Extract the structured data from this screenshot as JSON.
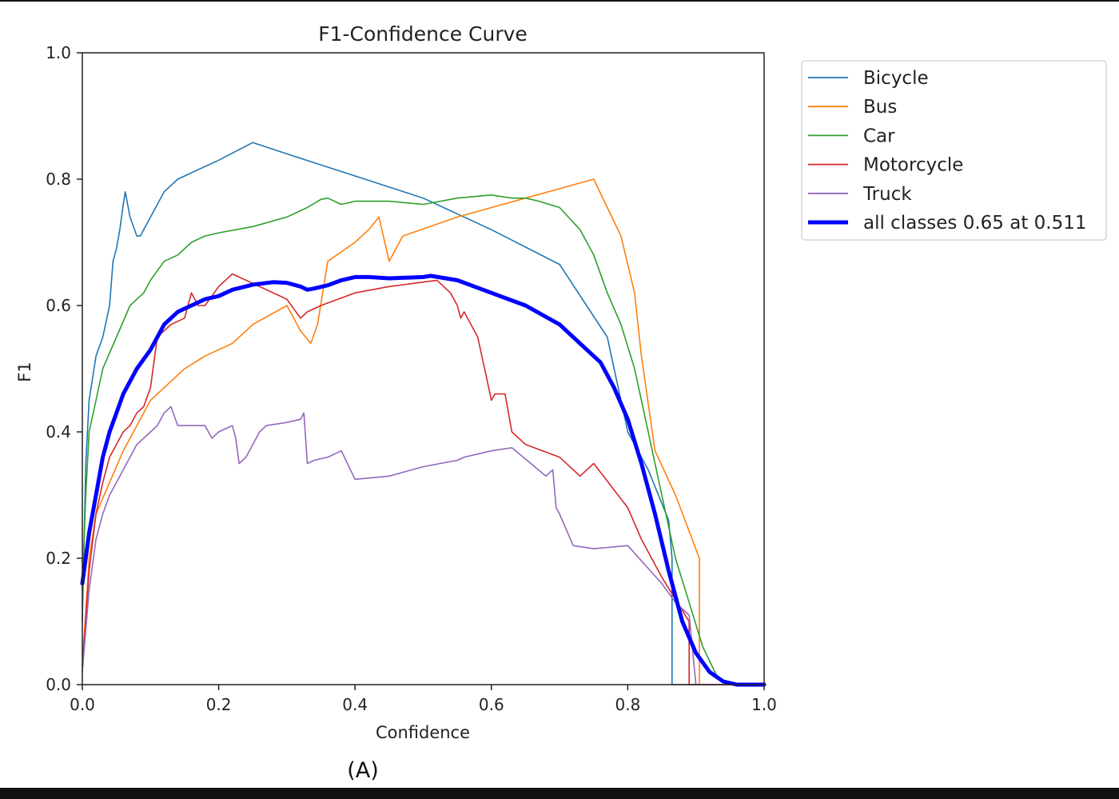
{
  "caption": "(A)",
  "chart_data": {
    "type": "line",
    "title": "F1-Confidence Curve",
    "xlabel": "Confidence",
    "ylabel": "F1",
    "xlim": [
      0.0,
      1.0
    ],
    "ylim": [
      0.0,
      1.0
    ],
    "xticks": [
      "0.0",
      "0.2",
      "0.4",
      "0.6",
      "0.8",
      "1.0"
    ],
    "yticks": [
      "0.0",
      "0.2",
      "0.4",
      "0.6",
      "0.8",
      "1.0"
    ],
    "grid": false,
    "legend_position": "outside-right-top",
    "series": [
      {
        "name": "Bicycle",
        "color": "#1f77b4",
        "width": 1.6,
        "x": [
          0,
          0.005,
          0.01,
          0.02,
          0.03,
          0.04,
          0.045,
          0.05,
          0.055,
          0.06,
          0.063,
          0.07,
          0.08,
          0.085,
          0.1,
          0.12,
          0.14,
          0.2,
          0.25,
          0.3,
          0.4,
          0.5,
          0.6,
          0.7,
          0.77,
          0.8,
          0.83,
          0.86,
          0.865,
          0.865,
          1.0
        ],
        "y": [
          0.1,
          0.35,
          0.45,
          0.52,
          0.55,
          0.6,
          0.67,
          0.69,
          0.72,
          0.76,
          0.78,
          0.74,
          0.71,
          0.71,
          0.74,
          0.78,
          0.8,
          0.83,
          0.858,
          0.84,
          0.805,
          0.77,
          0.72,
          0.665,
          0.55,
          0.4,
          0.34,
          0.26,
          0.2,
          0.0,
          0.0
        ]
      },
      {
        "name": "Bus",
        "color": "#ff7f0e",
        "width": 1.6,
        "x": [
          0,
          0.01,
          0.02,
          0.04,
          0.06,
          0.08,
          0.1,
          0.12,
          0.15,
          0.18,
          0.22,
          0.23,
          0.25,
          0.3,
          0.32,
          0.335,
          0.345,
          0.36,
          0.4,
          0.42,
          0.435,
          0.45,
          0.47,
          0.55,
          0.6,
          0.65,
          0.7,
          0.75,
          0.79,
          0.81,
          0.82,
          0.84,
          0.87,
          0.905,
          0.905,
          1.0
        ],
        "y": [
          0.03,
          0.2,
          0.27,
          0.32,
          0.37,
          0.41,
          0.45,
          0.47,
          0.5,
          0.52,
          0.54,
          0.55,
          0.57,
          0.6,
          0.56,
          0.54,
          0.57,
          0.67,
          0.7,
          0.72,
          0.74,
          0.67,
          0.71,
          0.74,
          0.755,
          0.77,
          0.785,
          0.8,
          0.71,
          0.62,
          0.52,
          0.37,
          0.3,
          0.2,
          0.0,
          0.0
        ]
      },
      {
        "name": "Car",
        "color": "#2ca02c",
        "width": 1.6,
        "x": [
          0,
          0.005,
          0.01,
          0.02,
          0.03,
          0.05,
          0.07,
          0.09,
          0.1,
          0.12,
          0.14,
          0.16,
          0.18,
          0.2,
          0.25,
          0.3,
          0.33,
          0.35,
          0.36,
          0.38,
          0.4,
          0.45,
          0.5,
          0.55,
          0.6,
          0.63,
          0.65,
          0.67,
          0.7,
          0.73,
          0.75,
          0.77,
          0.79,
          0.81,
          0.83,
          0.85,
          0.87,
          0.89,
          0.91,
          0.93,
          0.95,
          1.0
        ],
        "y": [
          0.15,
          0.3,
          0.4,
          0.45,
          0.5,
          0.55,
          0.6,
          0.62,
          0.64,
          0.67,
          0.68,
          0.7,
          0.71,
          0.715,
          0.725,
          0.74,
          0.755,
          0.768,
          0.77,
          0.76,
          0.765,
          0.765,
          0.76,
          0.77,
          0.775,
          0.77,
          0.77,
          0.765,
          0.755,
          0.72,
          0.68,
          0.62,
          0.57,
          0.5,
          0.4,
          0.3,
          0.2,
          0.13,
          0.06,
          0.015,
          0.0,
          0.0
        ]
      },
      {
        "name": "Motorcycle",
        "color": "#d62728",
        "width": 1.6,
        "x": [
          0,
          0.01,
          0.02,
          0.03,
          0.04,
          0.05,
          0.06,
          0.07,
          0.08,
          0.09,
          0.1,
          0.11,
          0.13,
          0.15,
          0.16,
          0.17,
          0.18,
          0.2,
          0.22,
          0.25,
          0.3,
          0.32,
          0.33,
          0.35,
          0.4,
          0.45,
          0.52,
          0.54,
          0.55,
          0.555,
          0.56,
          0.58,
          0.59,
          0.6,
          0.605,
          0.62,
          0.63,
          0.65,
          0.7,
          0.73,
          0.75,
          0.8,
          0.82,
          0.85,
          0.89,
          0.89,
          1.0
        ],
        "y": [
          0.03,
          0.18,
          0.27,
          0.32,
          0.36,
          0.38,
          0.4,
          0.41,
          0.43,
          0.44,
          0.47,
          0.55,
          0.57,
          0.58,
          0.62,
          0.6,
          0.6,
          0.63,
          0.65,
          0.635,
          0.61,
          0.58,
          0.59,
          0.6,
          0.62,
          0.63,
          0.64,
          0.62,
          0.6,
          0.58,
          0.59,
          0.55,
          0.5,
          0.45,
          0.46,
          0.46,
          0.4,
          0.38,
          0.36,
          0.33,
          0.35,
          0.28,
          0.23,
          0.17,
          0.1,
          0.0,
          0.0
        ]
      },
      {
        "name": "Truck",
        "color": "#9467bd",
        "width": 1.6,
        "x": [
          0,
          0.01,
          0.02,
          0.03,
          0.04,
          0.05,
          0.06,
          0.07,
          0.08,
          0.09,
          0.1,
          0.11,
          0.12,
          0.13,
          0.14,
          0.16,
          0.18,
          0.19,
          0.2,
          0.22,
          0.225,
          0.23,
          0.24,
          0.25,
          0.26,
          0.27,
          0.3,
          0.32,
          0.325,
          0.33,
          0.34,
          0.36,
          0.38,
          0.4,
          0.45,
          0.5,
          0.55,
          0.56,
          0.6,
          0.63,
          0.68,
          0.69,
          0.695,
          0.7,
          0.72,
          0.75,
          0.8,
          0.85,
          0.87,
          0.89,
          0.9,
          1.0
        ],
        "y": [
          0.02,
          0.15,
          0.23,
          0.27,
          0.3,
          0.32,
          0.34,
          0.36,
          0.38,
          0.39,
          0.4,
          0.41,
          0.43,
          0.44,
          0.41,
          0.41,
          0.41,
          0.39,
          0.4,
          0.41,
          0.39,
          0.35,
          0.36,
          0.38,
          0.4,
          0.41,
          0.415,
          0.42,
          0.43,
          0.35,
          0.355,
          0.36,
          0.37,
          0.325,
          0.33,
          0.345,
          0.355,
          0.36,
          0.37,
          0.375,
          0.33,
          0.34,
          0.28,
          0.27,
          0.22,
          0.215,
          0.22,
          0.16,
          0.13,
          0.11,
          0.0,
          0.0
        ]
      },
      {
        "name": "all classes 0.65 at 0.511",
        "color": "#0000ff",
        "width": 5,
        "x": [
          0,
          0.01,
          0.02,
          0.03,
          0.04,
          0.05,
          0.06,
          0.07,
          0.08,
          0.1,
          0.12,
          0.14,
          0.16,
          0.18,
          0.2,
          0.22,
          0.25,
          0.28,
          0.3,
          0.32,
          0.33,
          0.34,
          0.36,
          0.38,
          0.4,
          0.42,
          0.45,
          0.5,
          0.511,
          0.55,
          0.6,
          0.65,
          0.7,
          0.73,
          0.76,
          0.78,
          0.8,
          0.82,
          0.84,
          0.86,
          0.88,
          0.9,
          0.92,
          0.94,
          0.96,
          1.0
        ],
        "y": [
          0.16,
          0.24,
          0.3,
          0.36,
          0.4,
          0.43,
          0.46,
          0.48,
          0.5,
          0.53,
          0.57,
          0.59,
          0.6,
          0.61,
          0.615,
          0.625,
          0.633,
          0.637,
          0.636,
          0.63,
          0.625,
          0.627,
          0.632,
          0.64,
          0.645,
          0.645,
          0.643,
          0.645,
          0.647,
          0.64,
          0.62,
          0.6,
          0.57,
          0.54,
          0.51,
          0.47,
          0.42,
          0.35,
          0.27,
          0.18,
          0.1,
          0.05,
          0.02,
          0.005,
          0.0,
          0.0
        ]
      }
    ]
  }
}
